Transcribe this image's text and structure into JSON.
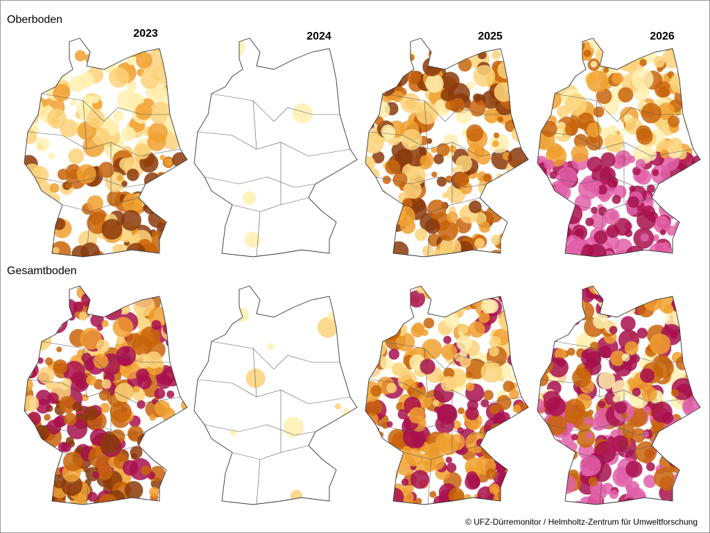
{
  "rows": [
    "Oberboden",
    "Gesamtboden"
  ],
  "years": [
    "2023",
    "2024",
    "2025",
    "2026"
  ],
  "credit": "© UFZ-Dürremonitor / Helmholtz-Zentrum für Umweltforschung"
}
